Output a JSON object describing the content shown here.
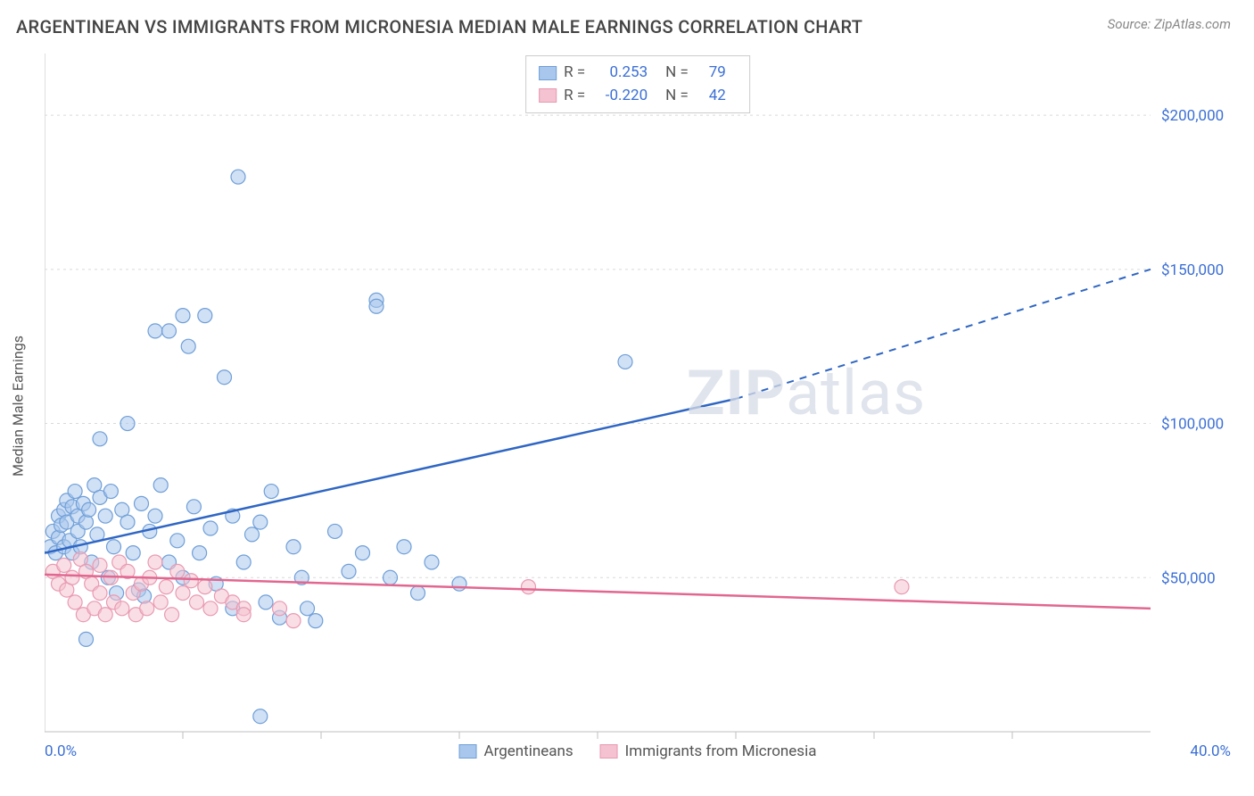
{
  "title": "ARGENTINEAN VS IMMIGRANTS FROM MICRONESIA MEDIAN MALE EARNINGS CORRELATION CHART",
  "source_label": "Source: ZipAtlas.com",
  "y_axis_label": "Median Male Earnings",
  "watermark": {
    "zip": "ZIP",
    "atlas": "atlas"
  },
  "chart": {
    "type": "scatter",
    "background_color": "#ffffff",
    "grid_color": "#d9d9d9",
    "axis_color": "#bfbfbf",
    "xlim": [
      0,
      40
    ],
    "ylim": [
      0,
      220000
    ],
    "x_tick_labels": {
      "min": "0.0%",
      "max": "40.0%"
    },
    "y_ticks": [
      {
        "v": 50000,
        "label": "$50,000"
      },
      {
        "v": 100000,
        "label": "$100,000"
      },
      {
        "v": 150000,
        "label": "$150,000"
      },
      {
        "v": 200000,
        "label": "$200,000"
      }
    ],
    "x_minor_ticks": [
      5,
      10,
      15,
      20,
      25,
      30,
      35
    ],
    "title_fontsize": 20,
    "tick_fontsize": 17,
    "tick_color": "#3b6fd6",
    "marker_radius": 8,
    "marker_opacity": 0.55,
    "series": [
      {
        "name": "Argentineans",
        "color_fill": "#a9c7ec",
        "color_stroke": "#6f9fd8",
        "line_color": "#2f66c4",
        "r_value": "0.253",
        "n_value": "79",
        "trend": {
          "x1": 0,
          "y1": 58000,
          "x2_solid": 25,
          "y2_solid": 108000,
          "x2_dash": 40,
          "y2_dash": 150000
        },
        "points": [
          [
            0.2,
            60000
          ],
          [
            0.3,
            65000
          ],
          [
            0.4,
            58000
          ],
          [
            0.5,
            70000
          ],
          [
            0.5,
            63000
          ],
          [
            0.6,
            67000
          ],
          [
            0.7,
            72000
          ],
          [
            0.7,
            60000
          ],
          [
            0.8,
            75000
          ],
          [
            0.8,
            68000
          ],
          [
            0.9,
            62000
          ],
          [
            1.0,
            73000
          ],
          [
            1.0,
            58000
          ],
          [
            1.1,
            78000
          ],
          [
            1.2,
            65000
          ],
          [
            1.2,
            70000
          ],
          [
            1.3,
            60000
          ],
          [
            1.4,
            74000
          ],
          [
            1.5,
            30000
          ],
          [
            1.5,
            68000
          ],
          [
            1.6,
            72000
          ],
          [
            1.7,
            55000
          ],
          [
            1.8,
            80000
          ],
          [
            1.9,
            64000
          ],
          [
            2.0,
            76000
          ],
          [
            2.0,
            95000
          ],
          [
            2.2,
            70000
          ],
          [
            2.3,
            50000
          ],
          [
            2.4,
            78000
          ],
          [
            2.5,
            60000
          ],
          [
            2.6,
            45000
          ],
          [
            2.8,
            72000
          ],
          [
            3.0,
            68000
          ],
          [
            3.0,
            100000
          ],
          [
            3.2,
            58000
          ],
          [
            3.4,
            46000
          ],
          [
            3.5,
            74000
          ],
          [
            3.6,
            44000
          ],
          [
            3.8,
            65000
          ],
          [
            4.0,
            70000
          ],
          [
            4.0,
            130000
          ],
          [
            4.2,
            80000
          ],
          [
            4.5,
            130000
          ],
          [
            4.5,
            55000
          ],
          [
            4.8,
            62000
          ],
          [
            5.0,
            135000
          ],
          [
            5.0,
            50000
          ],
          [
            5.2,
            125000
          ],
          [
            5.4,
            73000
          ],
          [
            5.6,
            58000
          ],
          [
            5.8,
            135000
          ],
          [
            6.0,
            66000
          ],
          [
            6.2,
            48000
          ],
          [
            6.5,
            115000
          ],
          [
            6.8,
            70000
          ],
          [
            6.8,
            40000
          ],
          [
            7.0,
            180000
          ],
          [
            7.2,
            55000
          ],
          [
            7.5,
            64000
          ],
          [
            7.8,
            68000
          ],
          [
            7.8,
            5000
          ],
          [
            8.0,
            42000
          ],
          [
            8.2,
            78000
          ],
          [
            8.5,
            37000
          ],
          [
            9.0,
            60000
          ],
          [
            9.3,
            50000
          ],
          [
            9.5,
            40000
          ],
          [
            9.8,
            36000
          ],
          [
            10.5,
            65000
          ],
          [
            11.0,
            52000
          ],
          [
            11.5,
            58000
          ],
          [
            12.0,
            140000
          ],
          [
            12.0,
            138000
          ],
          [
            12.5,
            50000
          ],
          [
            13.0,
            60000
          ],
          [
            13.5,
            45000
          ],
          [
            14.0,
            55000
          ],
          [
            15.0,
            48000
          ],
          [
            21.0,
            120000
          ]
        ]
      },
      {
        "name": "Immigrants from Micronesia",
        "color_fill": "#f4c2d0",
        "color_stroke": "#e99ab2",
        "line_color": "#e26790",
        "r_value": "-0.220",
        "n_value": "42",
        "trend": {
          "x1": 0,
          "y1": 51000,
          "x2_solid": 40,
          "y2_solid": 40000,
          "x2_dash": 40,
          "y2_dash": 40000
        },
        "points": [
          [
            0.3,
            52000
          ],
          [
            0.5,
            48000
          ],
          [
            0.7,
            54000
          ],
          [
            0.8,
            46000
          ],
          [
            1.0,
            50000
          ],
          [
            1.1,
            42000
          ],
          [
            1.3,
            56000
          ],
          [
            1.4,
            38000
          ],
          [
            1.5,
            52000
          ],
          [
            1.7,
            48000
          ],
          [
            1.8,
            40000
          ],
          [
            2.0,
            54000
          ],
          [
            2.0,
            45000
          ],
          [
            2.2,
            38000
          ],
          [
            2.4,
            50000
          ],
          [
            2.5,
            42000
          ],
          [
            2.7,
            55000
          ],
          [
            2.8,
            40000
          ],
          [
            3.0,
            52000
          ],
          [
            3.2,
            45000
          ],
          [
            3.3,
            38000
          ],
          [
            3.5,
            48000
          ],
          [
            3.7,
            40000
          ],
          [
            3.8,
            50000
          ],
          [
            4.0,
            55000
          ],
          [
            4.2,
            42000
          ],
          [
            4.4,
            47000
          ],
          [
            4.6,
            38000
          ],
          [
            4.8,
            52000
          ],
          [
            5.0,
            45000
          ],
          [
            5.3,
            49000
          ],
          [
            5.5,
            42000
          ],
          [
            5.8,
            47000
          ],
          [
            6.0,
            40000
          ],
          [
            6.4,
            44000
          ],
          [
            6.8,
            42000
          ],
          [
            7.2,
            40000
          ],
          [
            7.2,
            38000
          ],
          [
            8.5,
            40000
          ],
          [
            9.0,
            36000
          ],
          [
            17.5,
            47000
          ],
          [
            31.0,
            47000
          ]
        ]
      }
    ]
  },
  "legend_top": {
    "r_label": "R =",
    "n_label": "N ="
  },
  "legend_bottom_labels": [
    "Argentineans",
    "Immigrants from Micronesia"
  ]
}
